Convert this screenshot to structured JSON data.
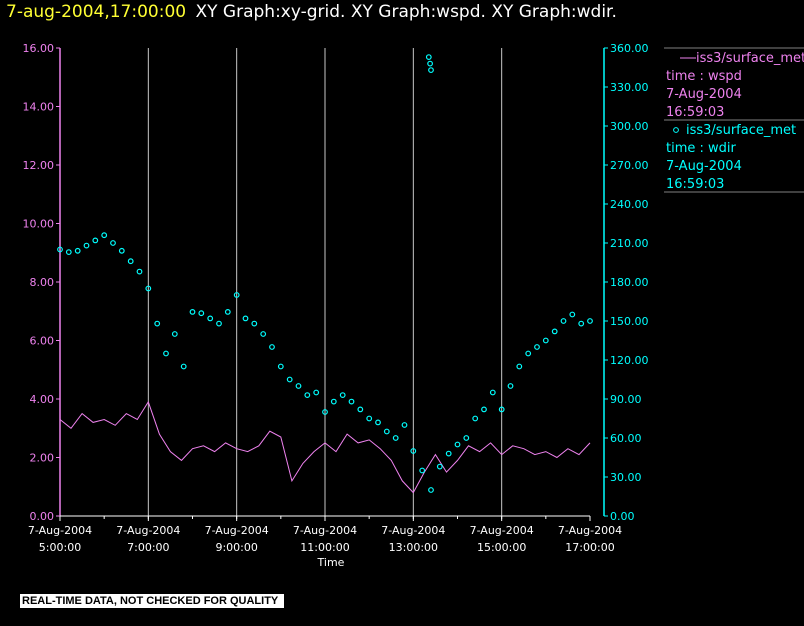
{
  "header": {
    "timestamp": "7-aug-2004,17:00:00",
    "graphs": "XY Graph:xy-grid.  XY Graph:wspd.  XY Graph:wdir."
  },
  "colors": {
    "wspd": "#ee82ee",
    "wdir": "#00ffff",
    "timestamp": "#ffff33",
    "text": "#ffffff"
  },
  "legend": [
    {
      "marker": "line",
      "source": "iss3/surface_met",
      "var": "time : wspd",
      "date": "7-Aug-2004",
      "time": "16:59:03"
    },
    {
      "marker": "circle",
      "source": "iss3/surface_met",
      "var": "time : wdir",
      "date": "7-Aug-2004",
      "time": "16:59:03"
    }
  ],
  "notice": "REAL-TIME DATA, NOT CHECKED FOR QUALITY",
  "chart_data": {
    "type": "line",
    "xlabel": "Time",
    "xlim": [
      5,
      17
    ],
    "x_ticks": [
      {
        "v": 5,
        "date": "7-Aug-2004",
        "time": "5:00:00"
      },
      {
        "v": 7,
        "date": "7-Aug-2004",
        "time": "7:00:00"
      },
      {
        "v": 9,
        "date": "7-Aug-2004",
        "time": "9:00:00"
      },
      {
        "v": 11,
        "date": "7-Aug-2004",
        "time": "11:00:00"
      },
      {
        "v": 13,
        "date": "7-Aug-2004",
        "time": "13:00:00"
      },
      {
        "v": 15,
        "date": "7-Aug-2004",
        "time": "15:00:00"
      },
      {
        "v": 17,
        "date": "7-Aug-2004",
        "time": "17:00:00"
      }
    ],
    "vgrid": [
      7,
      9,
      11,
      13,
      15
    ],
    "y_left": {
      "lim": [
        0,
        16
      ],
      "ticks": [
        "0.00",
        "2.00",
        "4.00",
        "6.00",
        "8.00",
        "10.00",
        "12.00",
        "14.00",
        "16.00"
      ]
    },
    "y_right": {
      "lim": [
        0,
        360
      ],
      "ticks": [
        "0.00",
        "30.00",
        "60.00",
        "90.00",
        "120.00",
        "150.00",
        "180.00",
        "210.00",
        "240.00",
        "270.00",
        "300.00",
        "330.00",
        "360.00"
      ]
    },
    "series": [
      {
        "name": "wspd",
        "axis": "left",
        "style": "line",
        "x": [
          5.0,
          5.25,
          5.5,
          5.75,
          6.0,
          6.25,
          6.5,
          6.75,
          7.0,
          7.25,
          7.5,
          7.75,
          8.0,
          8.25,
          8.5,
          8.75,
          9.0,
          9.25,
          9.5,
          9.75,
          10.0,
          10.25,
          10.5,
          10.75,
          11.0,
          11.25,
          11.5,
          11.75,
          12.0,
          12.25,
          12.5,
          12.75,
          13.0,
          13.25,
          13.5,
          13.75,
          14.0,
          14.25,
          14.5,
          14.75,
          15.0,
          15.25,
          15.5,
          15.75,
          16.0,
          16.25,
          16.5,
          16.75,
          17.0
        ],
        "y": [
          3.3,
          3.0,
          3.5,
          3.2,
          3.3,
          3.1,
          3.5,
          3.3,
          3.9,
          2.8,
          2.2,
          1.9,
          2.3,
          2.4,
          2.2,
          2.5,
          2.3,
          2.2,
          2.4,
          2.9,
          2.7,
          1.2,
          1.8,
          2.2,
          2.5,
          2.2,
          2.8,
          2.5,
          2.6,
          2.3,
          1.9,
          1.2,
          0.8,
          1.5,
          2.1,
          1.5,
          1.9,
          2.4,
          2.2,
          2.5,
          2.1,
          2.4,
          2.3,
          2.1,
          2.2,
          2.0,
          2.3,
          2.1,
          2.5
        ]
      },
      {
        "name": "wdir",
        "axis": "right",
        "style": "circle",
        "x": [
          5.0,
          5.2,
          5.4,
          5.6,
          5.8,
          6.0,
          6.2,
          6.4,
          6.6,
          6.8,
          7.0,
          7.2,
          7.4,
          7.6,
          7.8,
          8.0,
          8.2,
          8.4,
          8.6,
          8.8,
          9.0,
          9.2,
          9.4,
          9.6,
          9.8,
          10.0,
          10.2,
          10.4,
          10.6,
          10.8,
          11.0,
          11.2,
          11.4,
          11.6,
          11.8,
          12.0,
          12.2,
          12.4,
          12.6,
          12.8,
          13.0,
          13.2,
          13.4,
          13.6,
          13.8,
          14.0,
          14.2,
          14.4,
          14.6,
          14.8,
          15.0,
          15.2,
          15.4,
          15.6,
          15.8,
          16.0,
          16.2,
          16.4,
          16.6,
          16.8,
          17.0
        ],
        "y": [
          205,
          203,
          204,
          208,
          212,
          216,
          210,
          204,
          196,
          188,
          175,
          148,
          125,
          140,
          115,
          157,
          156,
          152,
          148,
          157,
          170,
          152,
          148,
          140,
          130,
          115,
          105,
          100,
          93,
          95,
          80,
          88,
          93,
          88,
          82,
          75,
          72,
          65,
          60,
          70,
          50,
          35,
          20,
          38,
          48,
          55,
          60,
          75,
          82,
          95,
          82,
          100,
          115,
          125,
          130,
          135,
          142,
          150,
          155,
          148,
          150
        ]
      },
      {
        "name": "wdir-outliers",
        "axis": "right",
        "style": "circle",
        "x": [
          13.35,
          13.38,
          13.4
        ],
        "y": [
          353,
          348,
          343
        ]
      }
    ]
  }
}
